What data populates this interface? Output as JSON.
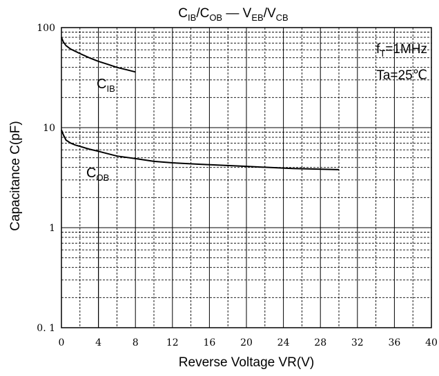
{
  "chart_data": {
    "type": "line",
    "title": {
      "p1": "C",
      "s1": "IB",
      "p2": "/C",
      "s2": "OB",
      "p3": " — V",
      "s3": "EB",
      "p4": "/V",
      "s4": "CB"
    },
    "xlabel": "Reverse Voltage   VR(V)",
    "ylabel": "Capacitance   C(pF)",
    "xlim": [
      0,
      40
    ],
    "ylim": [
      0.1,
      100
    ],
    "yscale": "log",
    "grid": true,
    "x_ticks": [
      0,
      4,
      8,
      12,
      16,
      20,
      24,
      28,
      32,
      36,
      40
    ],
    "x_tick_labels": [
      "0",
      "4",
      "8",
      "12",
      "16",
      "20",
      "24",
      "28",
      "32",
      "36",
      "40"
    ],
    "y_ticks": [
      0.1,
      1,
      10,
      100
    ],
    "y_tick_labels": [
      "0. 1",
      "1",
      "10",
      "100"
    ],
    "annotations": {
      "freq": {
        "main": "f",
        "sub": "T",
        "rest": "=1MHz"
      },
      "temp": "Ta=25℃"
    },
    "series": [
      {
        "label": {
          "main": "C",
          "sub": "IB"
        },
        "x": [
          0,
          0.2,
          0.5,
          1,
          1.5,
          2,
          3,
          4,
          5,
          6,
          7,
          8
        ],
        "y": [
          80,
          72,
          66,
          61,
          58,
          55,
          50,
          46,
          43,
          40,
          38,
          36
        ]
      },
      {
        "label": {
          "main": "C",
          "sub": "OB"
        },
        "x": [
          0,
          0.2,
          0.5,
          1,
          1.5,
          2,
          3,
          4,
          6,
          8,
          10,
          12,
          15,
          20,
          25,
          30
        ],
        "y": [
          9.5,
          8.5,
          7.5,
          7,
          6.7,
          6.5,
          6.1,
          5.8,
          5.2,
          4.9,
          4.6,
          4.45,
          4.3,
          4.1,
          3.9,
          3.8
        ]
      }
    ]
  }
}
